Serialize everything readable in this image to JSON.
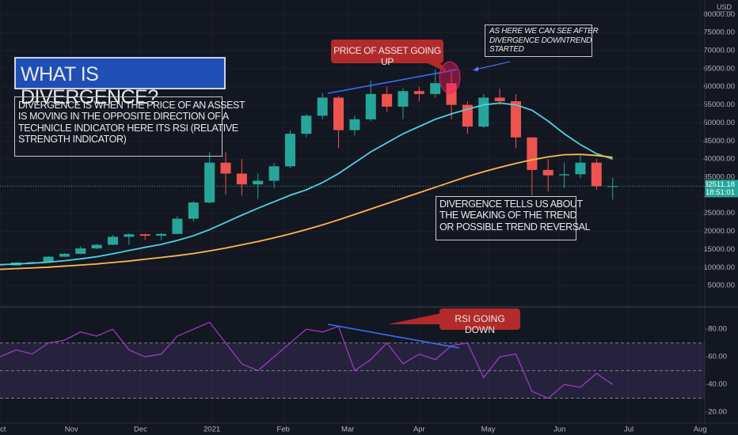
{
  "chart_data": [
    {
      "type": "candlestick",
      "currency": "USD",
      "x": [
        0,
        7,
        14,
        21,
        28,
        35,
        42,
        49,
        56,
        63,
        70,
        77,
        84,
        91,
        98,
        105,
        112,
        119,
        126,
        133,
        140,
        147,
        154,
        161,
        168,
        175,
        182,
        189,
        196,
        203,
        210,
        217,
        224,
        231,
        238,
        245,
        252,
        259,
        266
      ],
      "open": [
        10800,
        10600,
        11400,
        11500,
        13000,
        13800,
        15300,
        16300,
        18500,
        19200,
        18800,
        19300,
        23500,
        28000,
        39000,
        36000,
        33000,
        34000,
        38000,
        47000,
        52000,
        57000,
        48000,
        51000,
        58000,
        54500,
        58800,
        58000,
        61000,
        55000,
        49000,
        57000,
        56000,
        46000,
        37000,
        35500,
        35800,
        39000,
        32500
      ],
      "high": [
        11000,
        11500,
        11700,
        13200,
        14000,
        15900,
        16500,
        19000,
        19500,
        19400,
        19500,
        24200,
        28400,
        41900,
        41900,
        40000,
        36000,
        39000,
        48000,
        52500,
        58300,
        57500,
        52000,
        61700,
        60000,
        59600,
        60000,
        64800,
        64000,
        56000,
        58000,
        59500,
        58000,
        46000,
        40000,
        39000,
        40900,
        40000,
        34800
      ],
      "low": [
        10400,
        10550,
        11200,
        11400,
        12900,
        13700,
        15100,
        16200,
        16300,
        17600,
        17600,
        19200,
        22700,
        27700,
        30200,
        30000,
        28900,
        32000,
        37500,
        46000,
        51000,
        43000,
        46500,
        50500,
        53000,
        51000,
        56000,
        57000,
        51000,
        47000,
        48500,
        55000,
        43000,
        30000,
        31000,
        32000,
        34700,
        31500,
        28800
      ],
      "close": [
        10600,
        11400,
        11500,
        13000,
        13800,
        15300,
        16300,
        18500,
        19200,
        18800,
        19300,
        23500,
        28000,
        39000,
        36000,
        33000,
        34000,
        38000,
        47000,
        52000,
        57000,
        48000,
        51000,
        58000,
        54500,
        58800,
        58000,
        61000,
        55000,
        49000,
        57000,
        56000,
        46000,
        37000,
        35500,
        35800,
        39000,
        32500,
        32511.18
      ],
      "up_color": "#26a69a",
      "down_color": "#ef5350",
      "ma_lines": [
        {
          "color": "#4dd0e1",
          "values": [
            10800,
            11000,
            11200,
            11500,
            11900,
            12400,
            13000,
            13800,
            14700,
            15600,
            16400,
            17500,
            18800,
            20500,
            22500,
            24500,
            26400,
            28200,
            30000,
            31500,
            33500,
            36000,
            39000,
            42000,
            44500,
            47000,
            49000,
            51000,
            52500,
            53800,
            55000,
            55500,
            55000,
            53500,
            50500,
            47000,
            44000,
            41500,
            40000
          ]
        },
        {
          "color": "#ffb74d",
          "values": [
            9500,
            9700,
            9900,
            10100,
            10400,
            10700,
            11000,
            11400,
            11800,
            12300,
            12800,
            13300,
            13900,
            14600,
            15400,
            16300,
            17200,
            18200,
            19300,
            20500,
            21800,
            23200,
            24700,
            26200,
            27700,
            29200,
            30700,
            32200,
            33700,
            35200,
            36500,
            37700,
            38800,
            39800,
            40600,
            41200,
            41300,
            41000,
            40500
          ]
        }
      ],
      "xlim": [
        0,
        306
      ],
      "xticks": [
        {
          "value": 0,
          "label": "Oct"
        },
        {
          "value": 31,
          "label": "Nov"
        },
        {
          "value": 61,
          "label": "Dec"
        },
        {
          "value": 92,
          "label": "2021"
        },
        {
          "value": 123,
          "label": "Feb"
        },
        {
          "value": 151,
          "label": "Mar"
        },
        {
          "value": 182,
          "label": "Apr"
        },
        {
          "value": 212,
          "label": "May"
        },
        {
          "value": 243,
          "label": "Jun"
        },
        {
          "value": 273,
          "label": "Jul"
        },
        {
          "value": 304,
          "label": "Aug"
        }
      ],
      "ylim": [
        0,
        84000
      ],
      "yticks": [
        {
          "value": 5000,
          "label": "5000.00"
        },
        {
          "value": 10000,
          "label": "10000.00"
        },
        {
          "value": 15000,
          "label": "15000.00"
        },
        {
          "value": 20000,
          "label": "20000.00"
        },
        {
          "value": 25000,
          "label": "25000.00"
        },
        {
          "value": 30000,
          "label": "30000.00"
        },
        {
          "value": 35000,
          "label": "35000.00"
        },
        {
          "value": 40000,
          "label": "40000.00"
        },
        {
          "value": 45000,
          "label": "45000.00"
        },
        {
          "value": 50000,
          "label": "50000.00"
        },
        {
          "value": 55000,
          "label": "55000.00"
        },
        {
          "value": 60000,
          "label": "60000.00"
        },
        {
          "value": 65000,
          "label": "65000.00"
        },
        {
          "value": 70000,
          "label": "70000.00"
        },
        {
          "value": 75000,
          "label": "75000.00"
        },
        {
          "value": 80000,
          "label": "80000.00"
        }
      ],
      "last_price": {
        "value": 32511.18,
        "label": "32511.18"
      },
      "countdown": "18:51:01",
      "grid": true,
      "annotations": [
        {
          "text": "WHAT IS DIVERGENCE?"
        },
        {
          "lines": [
            "DIVERGENCE IS WHEN THE PRICE OF AN ASSEST",
            "IS MOVING IN THE OPPOSITE DIRECTION OF A",
            "TECHNICLE INDICATOR HERE ITS RSI (RELATIVE",
            "STRENGTH INDICATOR)"
          ]
        },
        {
          "text": "PRICE OF ASSET GOING UP"
        },
        {
          "lines": [
            "AS HERE WE CAN SEE AFTER",
            "DIVERGENCE DOWNTREND",
            "STARTED"
          ]
        },
        {
          "lines": [
            "DIVERGENCE TELLS US ABOUT",
            "THE WEAKING OF THE TREND",
            "OR POSSIBLE TREND REVERSAL"
          ]
        }
      ]
    },
    {
      "type": "line",
      "x": [
        0,
        7,
        14,
        21,
        28,
        35,
        42,
        49,
        56,
        63,
        70,
        77,
        84,
        91,
        98,
        105,
        112,
        119,
        126,
        133,
        140,
        147,
        154,
        161,
        168,
        175,
        182,
        189,
        196,
        203,
        210,
        217,
        224,
        231,
        238,
        245,
        252,
        259,
        266
      ],
      "values": [
        60,
        65,
        62,
        70,
        72,
        78,
        75,
        80,
        65,
        60,
        62,
        75,
        80,
        85,
        70,
        55,
        50,
        60,
        70,
        80,
        78,
        82,
        50,
        58,
        70,
        55,
        62,
        58,
        68,
        70,
        45,
        60,
        62,
        35,
        30,
        40,
        38,
        48,
        40
      ],
      "color": "#a13fc4",
      "ylim": [
        12,
        95
      ],
      "yticks": [
        {
          "value": 80,
          "label": "80.00"
        },
        {
          "value": 60,
          "label": "60.00"
        },
        {
          "value": 40,
          "label": "40.00"
        },
        {
          "value": 20,
          "label": "20.00"
        }
      ],
      "band": [
        30,
        70
      ],
      "levels": [
        30,
        50,
        70
      ],
      "annotations": [
        {
          "text": "RSI GOING DOWN"
        }
      ]
    }
  ]
}
